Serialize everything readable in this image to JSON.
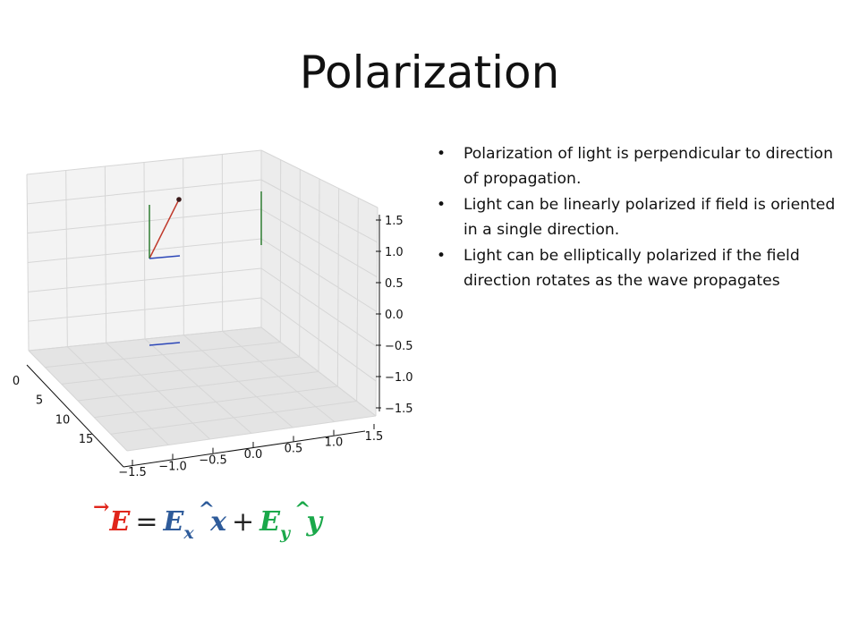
{
  "slide": {
    "title": "Polarization",
    "bullets": [
      "Polarization of light is perpendicular to direction of propagation.",
      "Light can be linearly polarized if field is oriented in a single direction.",
      "Light can be elliptically polarized if the field direction rotates as the wave propagates"
    ]
  },
  "chart_data": {
    "type": "3d-line",
    "x_ticks": [
      "−1.5",
      "−1.0",
      "−0.5",
      "0.0",
      "0.5",
      "1.0",
      "1.5"
    ],
    "z_ticks": [
      "1.5",
      "1.0",
      "0.5",
      "0.0",
      "−0.5",
      "−1.0",
      "−1.5"
    ],
    "depth_ticks": [
      "0",
      "5",
      "10",
      "15"
    ],
    "grid": true,
    "series": [
      {
        "color": "#c0392b",
        "values": [
          [
            0,
            1.0,
            1.0
          ]
        ]
      },
      {
        "color": "#2e7d32",
        "values": [
          [
            0,
            0,
            1.0
          ]
        ]
      },
      {
        "color": "#2c47b8",
        "values": [
          [
            0,
            1.0,
            0
          ]
        ]
      }
    ]
  },
  "equation": {
    "lhs": "E",
    "eq": "=",
    "term1": "E",
    "sub1": "x",
    "unit1": "x",
    "plus": "+",
    "term2": "E",
    "sub2": "y",
    "unit2": "y",
    "arrow": "→",
    "hat": "^"
  },
  "colors": {
    "e_vector": "#e0251b",
    "x_component": "#2e5b9a",
    "y_component": "#1aa84a",
    "field_line": "#c0392b",
    "green_line": "#2e7d32",
    "blue_line": "#2c47b8"
  }
}
